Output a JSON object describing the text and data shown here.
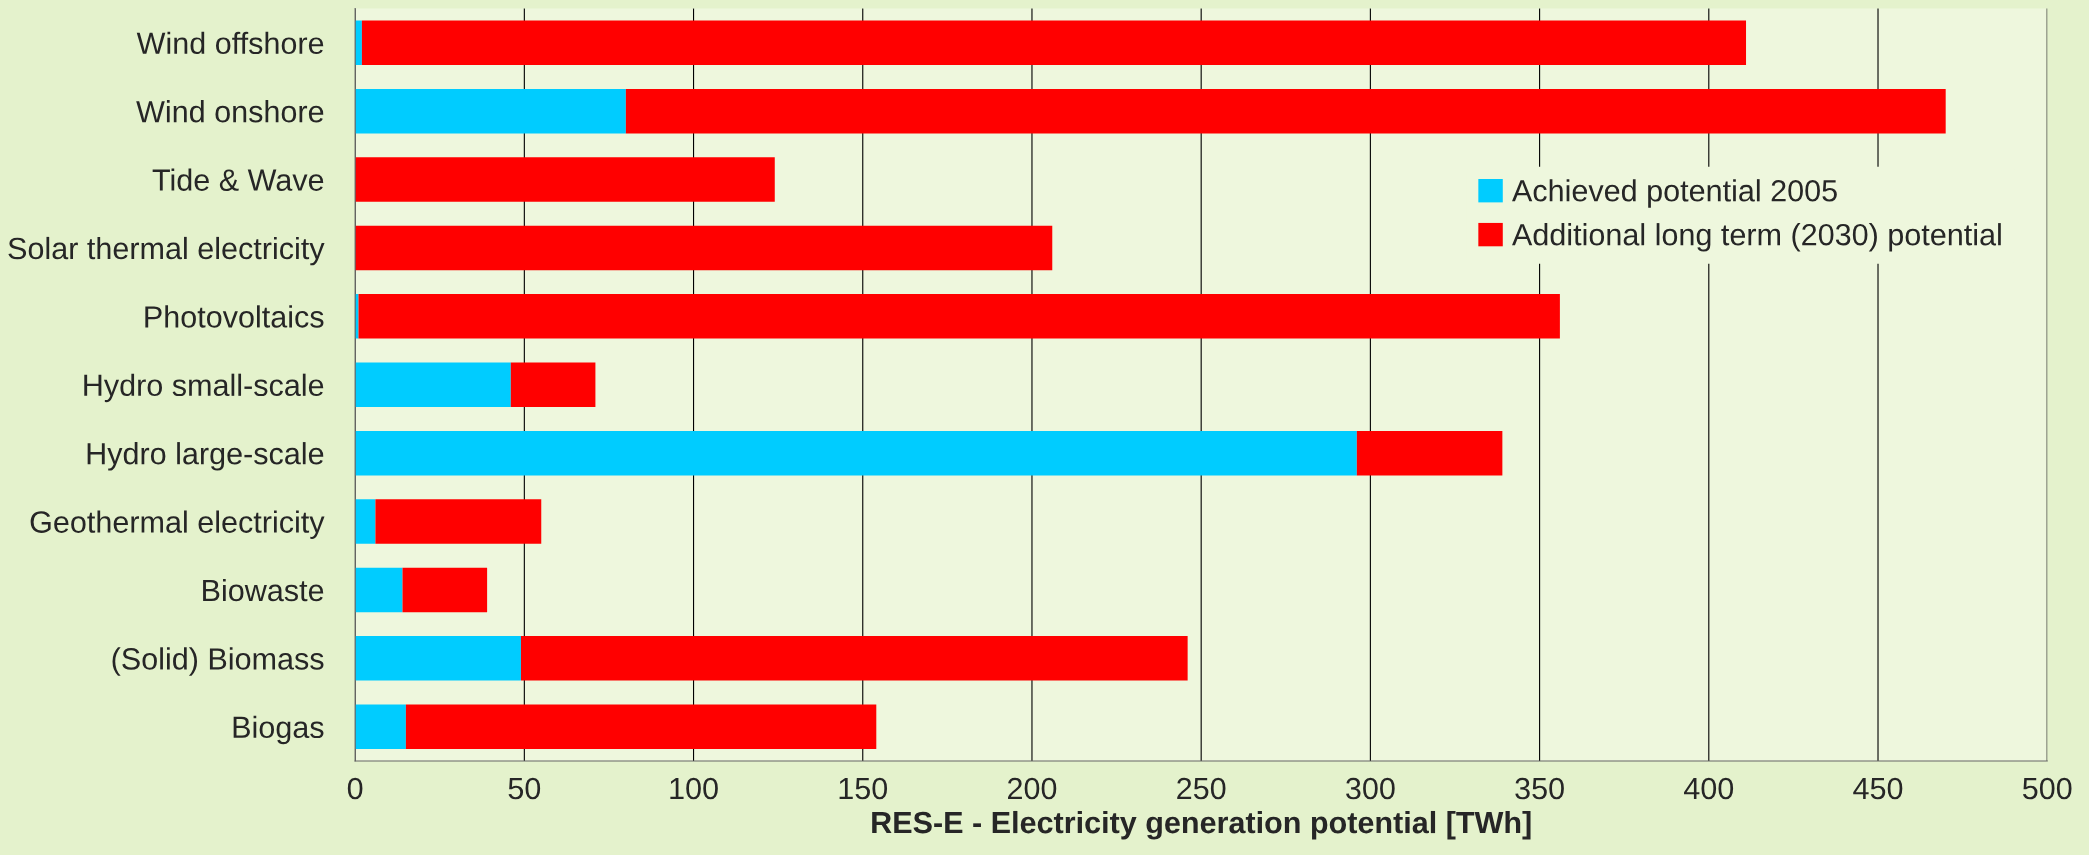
{
  "chart_data": {
    "type": "bar",
    "orientation": "horizontal",
    "stacked": true,
    "categories": [
      "Wind offshore",
      "Wind onshore",
      "Tide & Wave",
      "Solar thermal electricity",
      "Photovoltaics",
      "Hydro small-scale",
      "Hydro large-scale",
      "Geothermal electricity",
      "Biowaste",
      "(Solid) Biomass",
      "Biogas"
    ],
    "series": [
      {
        "name": "Achieved potential 2005",
        "color": "#00ccff",
        "values": [
          2,
          80,
          0,
          0,
          1,
          46,
          296,
          6,
          14,
          49,
          15
        ]
      },
      {
        "name": "Additional long term (2030) potential",
        "color": "#ff0000",
        "values": [
          409,
          390,
          124,
          206,
          355,
          25,
          43,
          49,
          25,
          197,
          139
        ]
      }
    ],
    "xlabel": "RES-E - Electricity generation potential [TWh]",
    "xlim": [
      0,
      500
    ],
    "xticks": [
      0,
      50,
      100,
      150,
      200,
      250,
      300,
      350,
      400,
      450,
      500
    ],
    "grid": "x",
    "legend": "top right"
  }
}
